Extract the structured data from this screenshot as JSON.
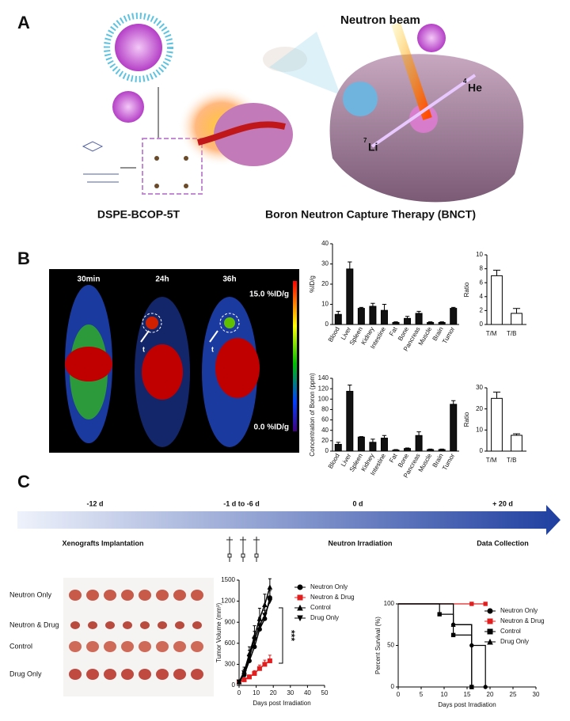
{
  "panel_labels": [
    "A",
    "B",
    "C"
  ],
  "panel_a": {
    "beam": "Neutron beam",
    "compound": "DSPE-BCOP-5T",
    "therapy": "Boron Neutron Capture Therapy (BNCT)",
    "he_mass": "4",
    "he": "He",
    "li_mass": "7",
    "li": "Li"
  },
  "panel_b_image": {
    "times": [
      "30min",
      "24h",
      "36h"
    ],
    "scale_max": "15.0 %ID/g",
    "scale_min": "0.0 %ID/g",
    "tumor_marker": "t"
  },
  "timeline": {
    "ticks": [
      "-12 d",
      "-1 d to -6 d",
      "0 d",
      "+ 20 d"
    ],
    "events": [
      "Xenografts Implantation",
      "Neutron Irradiation",
      "Data Collection"
    ]
  },
  "photo_labels": [
    "Neutron Only",
    "Neutron & Drug",
    "Control",
    "Drug Only"
  ],
  "chart_data": [
    {
      "type": "bar",
      "ylabel": "%ID/g",
      "categories": [
        "Blood",
        "Liver",
        "Spleen",
        "Kidney",
        "Intestine",
        "Fat",
        "Bone",
        "Pancreas",
        "Muscle",
        "Brain",
        "Tumor"
      ],
      "values": [
        5,
        27.5,
        8,
        9,
        7,
        1,
        3,
        5.5,
        1,
        1,
        8
      ],
      "errors": [
        1.5,
        3.5,
        0.5,
        1.5,
        3,
        0.3,
        1,
        1,
        0.3,
        0.3,
        0.5
      ],
      "color": "#111111",
      "edgecolor": "#000000",
      "ylim": [
        0,
        40
      ],
      "yticks": [
        0,
        10,
        20,
        30,
        40
      ]
    },
    {
      "type": "bar",
      "ylabel": "Ratio",
      "categories": [
        "T/M",
        "T/B"
      ],
      "values": [
        7,
        1.6
      ],
      "errors": [
        0.8,
        0.7
      ],
      "color": "#ffffff",
      "edgecolor": "#000000",
      "ylim": [
        0,
        10
      ],
      "yticks": [
        0,
        2,
        4,
        6,
        8,
        10
      ]
    },
    {
      "type": "bar",
      "ylabel": "Concentration of Boron (ppm)",
      "categories": [
        "Blood",
        "Liver",
        "Spleen",
        "Kidney",
        "Intestine",
        "Fat",
        "Bone",
        "Pancreas",
        "Muscle",
        "Brain",
        "Tumor"
      ],
      "values": [
        13,
        115,
        27,
        17,
        25,
        2,
        5,
        30,
        3,
        3,
        90
      ],
      "errors": [
        4,
        12,
        1,
        6,
        5,
        1,
        1,
        7,
        1,
        1,
        7
      ],
      "color": "#111111",
      "edgecolor": "#000000",
      "ylim": [
        0,
        140
      ],
      "yticks": [
        0,
        20,
        40,
        60,
        80,
        100,
        120,
        140
      ]
    },
    {
      "type": "bar",
      "ylabel": "Ratio",
      "categories": [
        "T/M",
        "T/B"
      ],
      "values": [
        25,
        7.5
      ],
      "errors": [
        3,
        0.7
      ],
      "color": "#ffffff",
      "edgecolor": "#000000",
      "ylim": [
        0,
        30
      ],
      "yticks": [
        0,
        10,
        20,
        30
      ]
    },
    {
      "type": "line",
      "xlabel": "Days post Irradiation",
      "ylabel": "Tumor Volume (mm³)",
      "annotation": "***",
      "x": [
        0,
        3,
        6,
        9,
        12,
        15,
        18
      ],
      "series": [
        {
          "name": "Neutron Only",
          "color": "#000000",
          "marker": "circle",
          "values": [
            50,
            150,
            350,
            550,
            800,
            950,
            1250
          ],
          "errors": [
            10,
            40,
            100,
            150,
            150,
            120,
            120
          ]
        },
        {
          "name": "Neutron & Drug",
          "color": "#e02020",
          "marker": "square",
          "values": [
            50,
            80,
            120,
            170,
            240,
            300,
            350
          ],
          "errors": [
            10,
            20,
            30,
            40,
            50,
            60,
            80
          ]
        },
        {
          "name": "Control",
          "color": "#000000",
          "marker": "triangle",
          "values": [
            50,
            200,
            450,
            700,
            950,
            1150,
            1400
          ],
          "errors": [
            10,
            60,
            100,
            150,
            150,
            150,
            120
          ]
        },
        {
          "name": "Drug Only",
          "color": "#000000",
          "marker": "triangle-down",
          "values": [
            50,
            180,
            400,
            650,
            850,
            1000,
            1200
          ],
          "errors": [
            10,
            50,
            100,
            120,
            120,
            120,
            150
          ]
        }
      ],
      "xlim": [
        0,
        50
      ],
      "xticks": [
        0,
        10,
        20,
        30,
        40,
        50
      ],
      "ylim": [
        0,
        1500
      ],
      "yticks": [
        0,
        300,
        600,
        900,
        1200,
        1500
      ],
      "legend": "right"
    },
    {
      "type": "step",
      "xlabel": "Days post Irradiation",
      "ylabel": "Percent Survival (%)",
      "series": [
        {
          "name": "Neutron Only",
          "color": "#000000",
          "marker": "circle",
          "x": [
            0,
            12,
            16,
            19
          ],
          "values": [
            100,
            75,
            50,
            0
          ]
        },
        {
          "name": "Neutron & Drug",
          "color": "#e02020",
          "marker": "square",
          "x": [
            0,
            16,
            19
          ],
          "values": [
            100,
            100,
            100
          ]
        },
        {
          "name": "Control",
          "color": "#000000",
          "marker": "square",
          "x": [
            0,
            9,
            12,
            16
          ],
          "values": [
            100,
            87.5,
            62.5,
            0
          ]
        },
        {
          "name": "Drug Only",
          "color": "#000000",
          "marker": "triangle",
          "x": [
            0,
            12,
            16
          ],
          "values": [
            100,
            75,
            0
          ]
        }
      ],
      "xlim": [
        0,
        30
      ],
      "xticks": [
        0,
        5,
        10,
        15,
        20,
        25,
        30
      ],
      "ylim": [
        0,
        100
      ],
      "yticks": [
        0,
        50,
        100
      ],
      "legend": "right"
    }
  ]
}
